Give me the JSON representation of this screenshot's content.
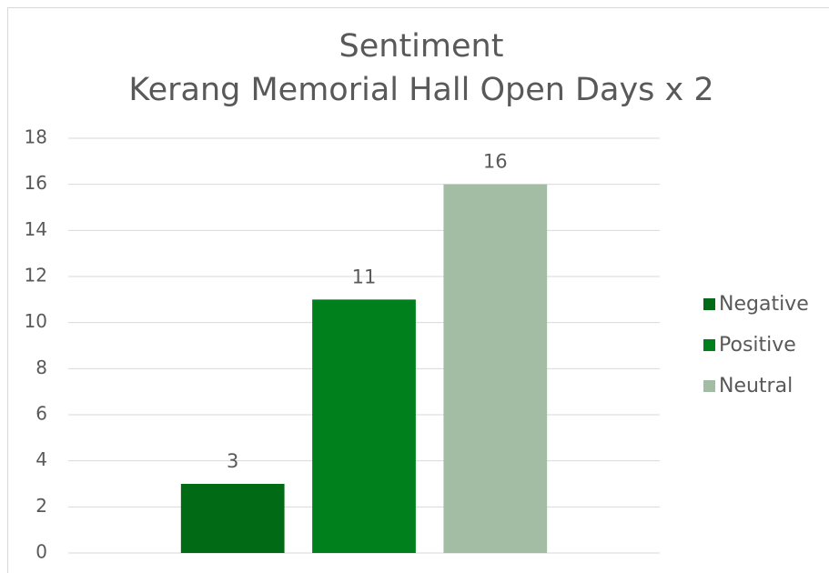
{
  "chart_data": {
    "type": "bar",
    "title": [
      "Sentiment",
      "Kerang Memorial Hall Open Days x 2"
    ],
    "categories": [
      null
    ],
    "series": [
      {
        "name": "Negative",
        "color": "#006b14",
        "values": [
          3
        ]
      },
      {
        "name": "Positive",
        "color": "#00801c",
        "values": [
          11
        ]
      },
      {
        "name": "Neutral",
        "color": "#a3bda4",
        "values": [
          16
        ]
      }
    ],
    "ylim": [
      0,
      18
    ],
    "yticks": [
      0,
      2,
      4,
      6,
      8,
      10,
      12,
      14,
      16,
      18
    ],
    "grid": true,
    "legend": "right",
    "data_labels": true
  }
}
